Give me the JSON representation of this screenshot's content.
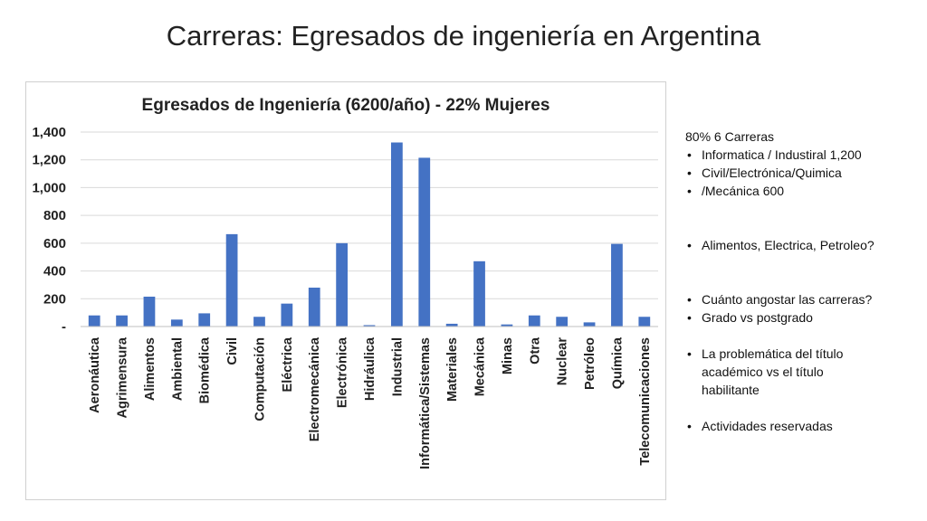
{
  "slide": {
    "title": "Carreras: Egresados de ingeniería en Argentina"
  },
  "chart_data": {
    "type": "bar",
    "title": "Egresados de Ingeniería (6200/año) - 22% Mujeres",
    "xlabel": "",
    "ylabel": "",
    "ylim": [
      0,
      1400
    ],
    "yticks": [
      {
        "value": 0,
        "label": "-"
      },
      {
        "value": 200,
        "label": "200"
      },
      {
        "value": 400,
        "label": "400"
      },
      {
        "value": 600,
        "label": "600"
      },
      {
        "value": 800,
        "label": "800"
      },
      {
        "value": 1000,
        "label": "1,000"
      },
      {
        "value": 1200,
        "label": "1,200"
      },
      {
        "value": 1400,
        "label": "1,400"
      }
    ],
    "grid": true,
    "legend": "none",
    "bar_color": "#4472c4",
    "categories": [
      "Aeronáutica",
      "Agrimensura",
      "Alimentos",
      "Ambiental",
      "Biomédica",
      "Civil",
      "Computación",
      "Eléctrica",
      "Electromecánica",
      "Electrónica",
      "Hidráulica",
      "Industrial",
      "Informática/Sistemas",
      "Materiales",
      "Mecánica",
      "Minas",
      "Otra",
      "Nuclear",
      "Petróleo",
      "Química",
      "Telecomunicaciones"
    ],
    "values": [
      80,
      80,
      215,
      50,
      95,
      665,
      70,
      165,
      280,
      600,
      10,
      1325,
      1215,
      20,
      470,
      15,
      80,
      70,
      30,
      595,
      70
    ]
  },
  "notes": {
    "lines": [
      {
        "type": "plain",
        "text": "80%    6 Carreras"
      },
      {
        "type": "bullet",
        "text": "Informatica / Industiral  1,200"
      },
      {
        "type": "bullet",
        "text": "Civil/Electrónica/Quimica"
      },
      {
        "type": "bullet",
        "text": "/Mecánica               600"
      },
      {
        "type": "gap2",
        "text": ""
      },
      {
        "type": "bullet",
        "text": "Alimentos, Electrica,  Petroleo?"
      },
      {
        "type": "gap2",
        "text": ""
      },
      {
        "type": "bullet",
        "text": "Cuánto angostar las carreras?"
      },
      {
        "type": "bullet",
        "text": "Grado vs postgrado"
      },
      {
        "type": "blank",
        "text": ""
      },
      {
        "type": "bullet",
        "text": "La problemática del título"
      },
      {
        "type": "cont",
        "text": "académico vs el título"
      },
      {
        "type": "cont",
        "text": "habilitante"
      },
      {
        "type": "blank",
        "text": ""
      },
      {
        "type": "bullet",
        "text": "Actividades reservadas"
      }
    ]
  }
}
